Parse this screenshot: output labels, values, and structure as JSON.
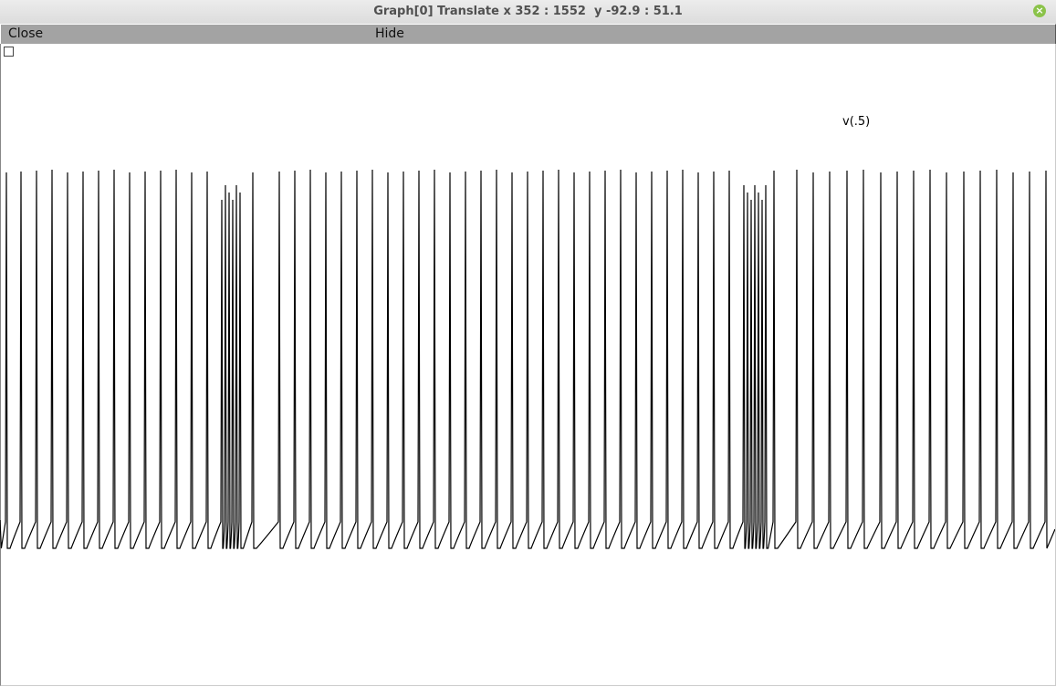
{
  "window": {
    "title": "Graph[0] Translate x 352 : 1552  y -92.9 : 51.1",
    "close_icon": "close-x-icon"
  },
  "menu": {
    "close_label": "Close",
    "hide_label": "Hide"
  },
  "graph": {
    "trace_label": "v(.5)",
    "keep_lines_checked": false
  },
  "chart_data": {
    "type": "line",
    "xlim": [
      352,
      1552
    ],
    "ylim": [
      -92.9,
      51.1
    ],
    "series": [
      {
        "name": "v(.5)",
        "color": "#000000",
        "description_points": "repetitive action potential spike train; resting near -65 mV, spikes peaking near +34 mV with two high-frequency bursts"
      }
    ]
  }
}
